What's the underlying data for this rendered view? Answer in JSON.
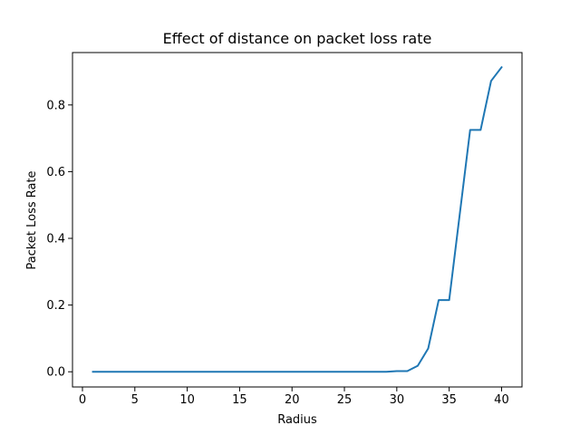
{
  "chart_data": {
    "type": "line",
    "title": "Effect of distance on packet loss rate",
    "xlabel": "Radius",
    "ylabel": "Packet Loss Rate",
    "xlim": [
      -0.95,
      41.95
    ],
    "ylim": [
      -0.0456,
      0.9571
    ],
    "xticks": [
      0,
      5,
      10,
      15,
      20,
      25,
      30,
      35,
      40
    ],
    "xtick_labels": [
      "0",
      "5",
      "10",
      "15",
      "20",
      "25",
      "30",
      "35",
      "40"
    ],
    "yticks": [
      0.0,
      0.2,
      0.4,
      0.6,
      0.8
    ],
    "ytick_labels": [
      "0.0",
      "0.2",
      "0.4",
      "0.6",
      "0.8"
    ],
    "grid": false,
    "legend": false,
    "line_color": "#1f77b4",
    "series": [
      {
        "x": [
          1,
          2,
          3,
          4,
          5,
          6,
          7,
          8,
          9,
          10,
          11,
          12,
          13,
          14,
          15,
          16,
          17,
          18,
          19,
          20,
          21,
          22,
          23,
          24,
          25,
          26,
          27,
          28,
          29,
          30,
          31,
          32,
          33,
          34,
          35,
          36,
          37,
          38,
          39,
          40
        ],
        "values": [
          0,
          0,
          0,
          0,
          0,
          0,
          0,
          0,
          0,
          0,
          0,
          0,
          0,
          0,
          0,
          0,
          0,
          0,
          0,
          0,
          0,
          0,
          0,
          0,
          0,
          0,
          0,
          0,
          0,
          0.002,
          0.002,
          0.018,
          0.07,
          0.215,
          0.215,
          0.47,
          0.725,
          0.725,
          0.872,
          0.913
        ]
      }
    ]
  }
}
